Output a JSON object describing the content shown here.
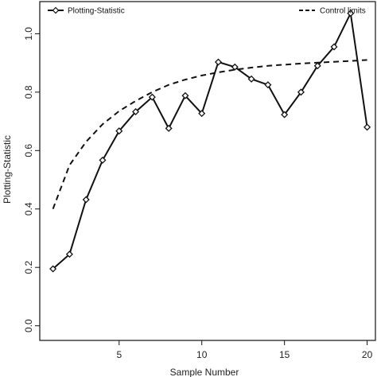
{
  "chart_data": {
    "type": "line",
    "title": "",
    "xlabel": "Sample Number",
    "ylabel": "Plotting-Statistic",
    "xlim": [
      0.2,
      20.5
    ],
    "ylim": [
      -0.05,
      1.11
    ],
    "x_ticks": [
      5,
      10,
      15,
      20
    ],
    "y_ticks": [
      0.0,
      0.2,
      0.4,
      0.6,
      0.8,
      1.0
    ],
    "x_tick_labels": [
      "5",
      "10",
      "15",
      "20"
    ],
    "y_tick_labels": [
      "0.0",
      "0.2",
      "0.4",
      "0.6",
      "0.8",
      "1.0"
    ],
    "grid": false,
    "legend_placement": "top",
    "series": [
      {
        "name": "Plotting-Statistic",
        "style": "solid-with-diamond-markers",
        "color": "#111111",
        "x": [
          1,
          2,
          3,
          4,
          5,
          6,
          7,
          8,
          9,
          10,
          11,
          12,
          13,
          14,
          15,
          16,
          17,
          18,
          19,
          20
        ],
        "y": [
          0.195,
          0.245,
          0.432,
          0.567,
          0.667,
          0.733,
          0.783,
          0.676,
          0.788,
          0.727,
          0.903,
          0.886,
          0.845,
          0.825,
          0.723,
          0.8,
          0.89,
          0.955,
          1.07,
          0.68
        ]
      },
      {
        "name": "Control limits",
        "style": "dashed",
        "color": "#111111",
        "x": [
          1,
          2,
          3,
          4,
          5,
          6,
          7,
          8,
          9,
          10,
          11,
          12,
          13,
          14,
          15,
          16,
          17,
          18,
          19,
          20
        ],
        "y": [
          0.4,
          0.55,
          0.63,
          0.69,
          0.735,
          0.77,
          0.8,
          0.825,
          0.843,
          0.857,
          0.868,
          0.877,
          0.884,
          0.89,
          0.894,
          0.898,
          0.901,
          0.904,
          0.907,
          0.91
        ]
      }
    ]
  }
}
